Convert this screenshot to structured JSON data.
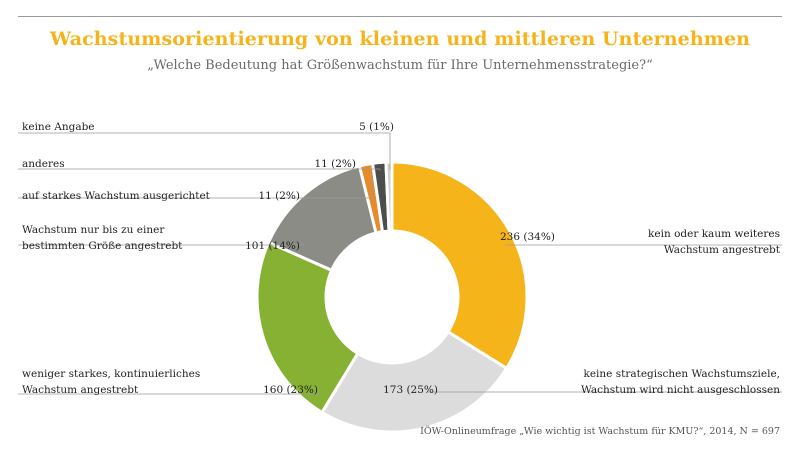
{
  "chart_data": {
    "type": "pie",
    "title": "Wachstumsorientierung von kleinen und mittleren Unternehmen",
    "subtitle": "„Welche Bedeutung hat Größenwachstum für Ihre Unternehmensstrategie?“",
    "source": "IÖW-Onlineumfrage „Wie wichtig ist Wachstum für KMU?“, 2014, N = 697",
    "slices": [
      {
        "label_lines": [
          "kein oder kaum weiteres",
          "Wachstum angestrebt"
        ],
        "count": 236,
        "percent": 34,
        "value_text": "236 (34%)",
        "color": "#f4b41a"
      },
      {
        "label_lines": [
          "keine strategischen Wachstumsziele,",
          "Wachstum wird nicht ausgeschlossen"
        ],
        "count": 173,
        "percent": 25,
        "value_text": "173 (25%)",
        "color": "#dcdcdc"
      },
      {
        "label_lines": [
          "weniger starkes, kontinuierliches",
          "Wachstum angestrebt"
        ],
        "count": 160,
        "percent": 23,
        "value_text": "160 (23%)",
        "color": "#86b133"
      },
      {
        "label_lines": [
          "Wachstum nur bis zu einer",
          "bestimmten Größe angestrebt"
        ],
        "count": 101,
        "percent": 14,
        "value_text": "101 (14%)",
        "color": "#8c8c87"
      },
      {
        "label_lines": [
          "auf starkes Wachstum ausgerichtet"
        ],
        "count": 11,
        "percent": 2,
        "value_text": "11 (2%)",
        "color": "#e8892a"
      },
      {
        "label_lines": [
          "anderes"
        ],
        "count": 11,
        "percent": 2,
        "value_text": "11 (2%)",
        "color": "#4d4d4d"
      },
      {
        "label_lines": [
          "keine Angabe"
        ],
        "count": 5,
        "percent": 1,
        "value_text": "5 (1%)",
        "color": "#cfcfcf"
      }
    ]
  }
}
